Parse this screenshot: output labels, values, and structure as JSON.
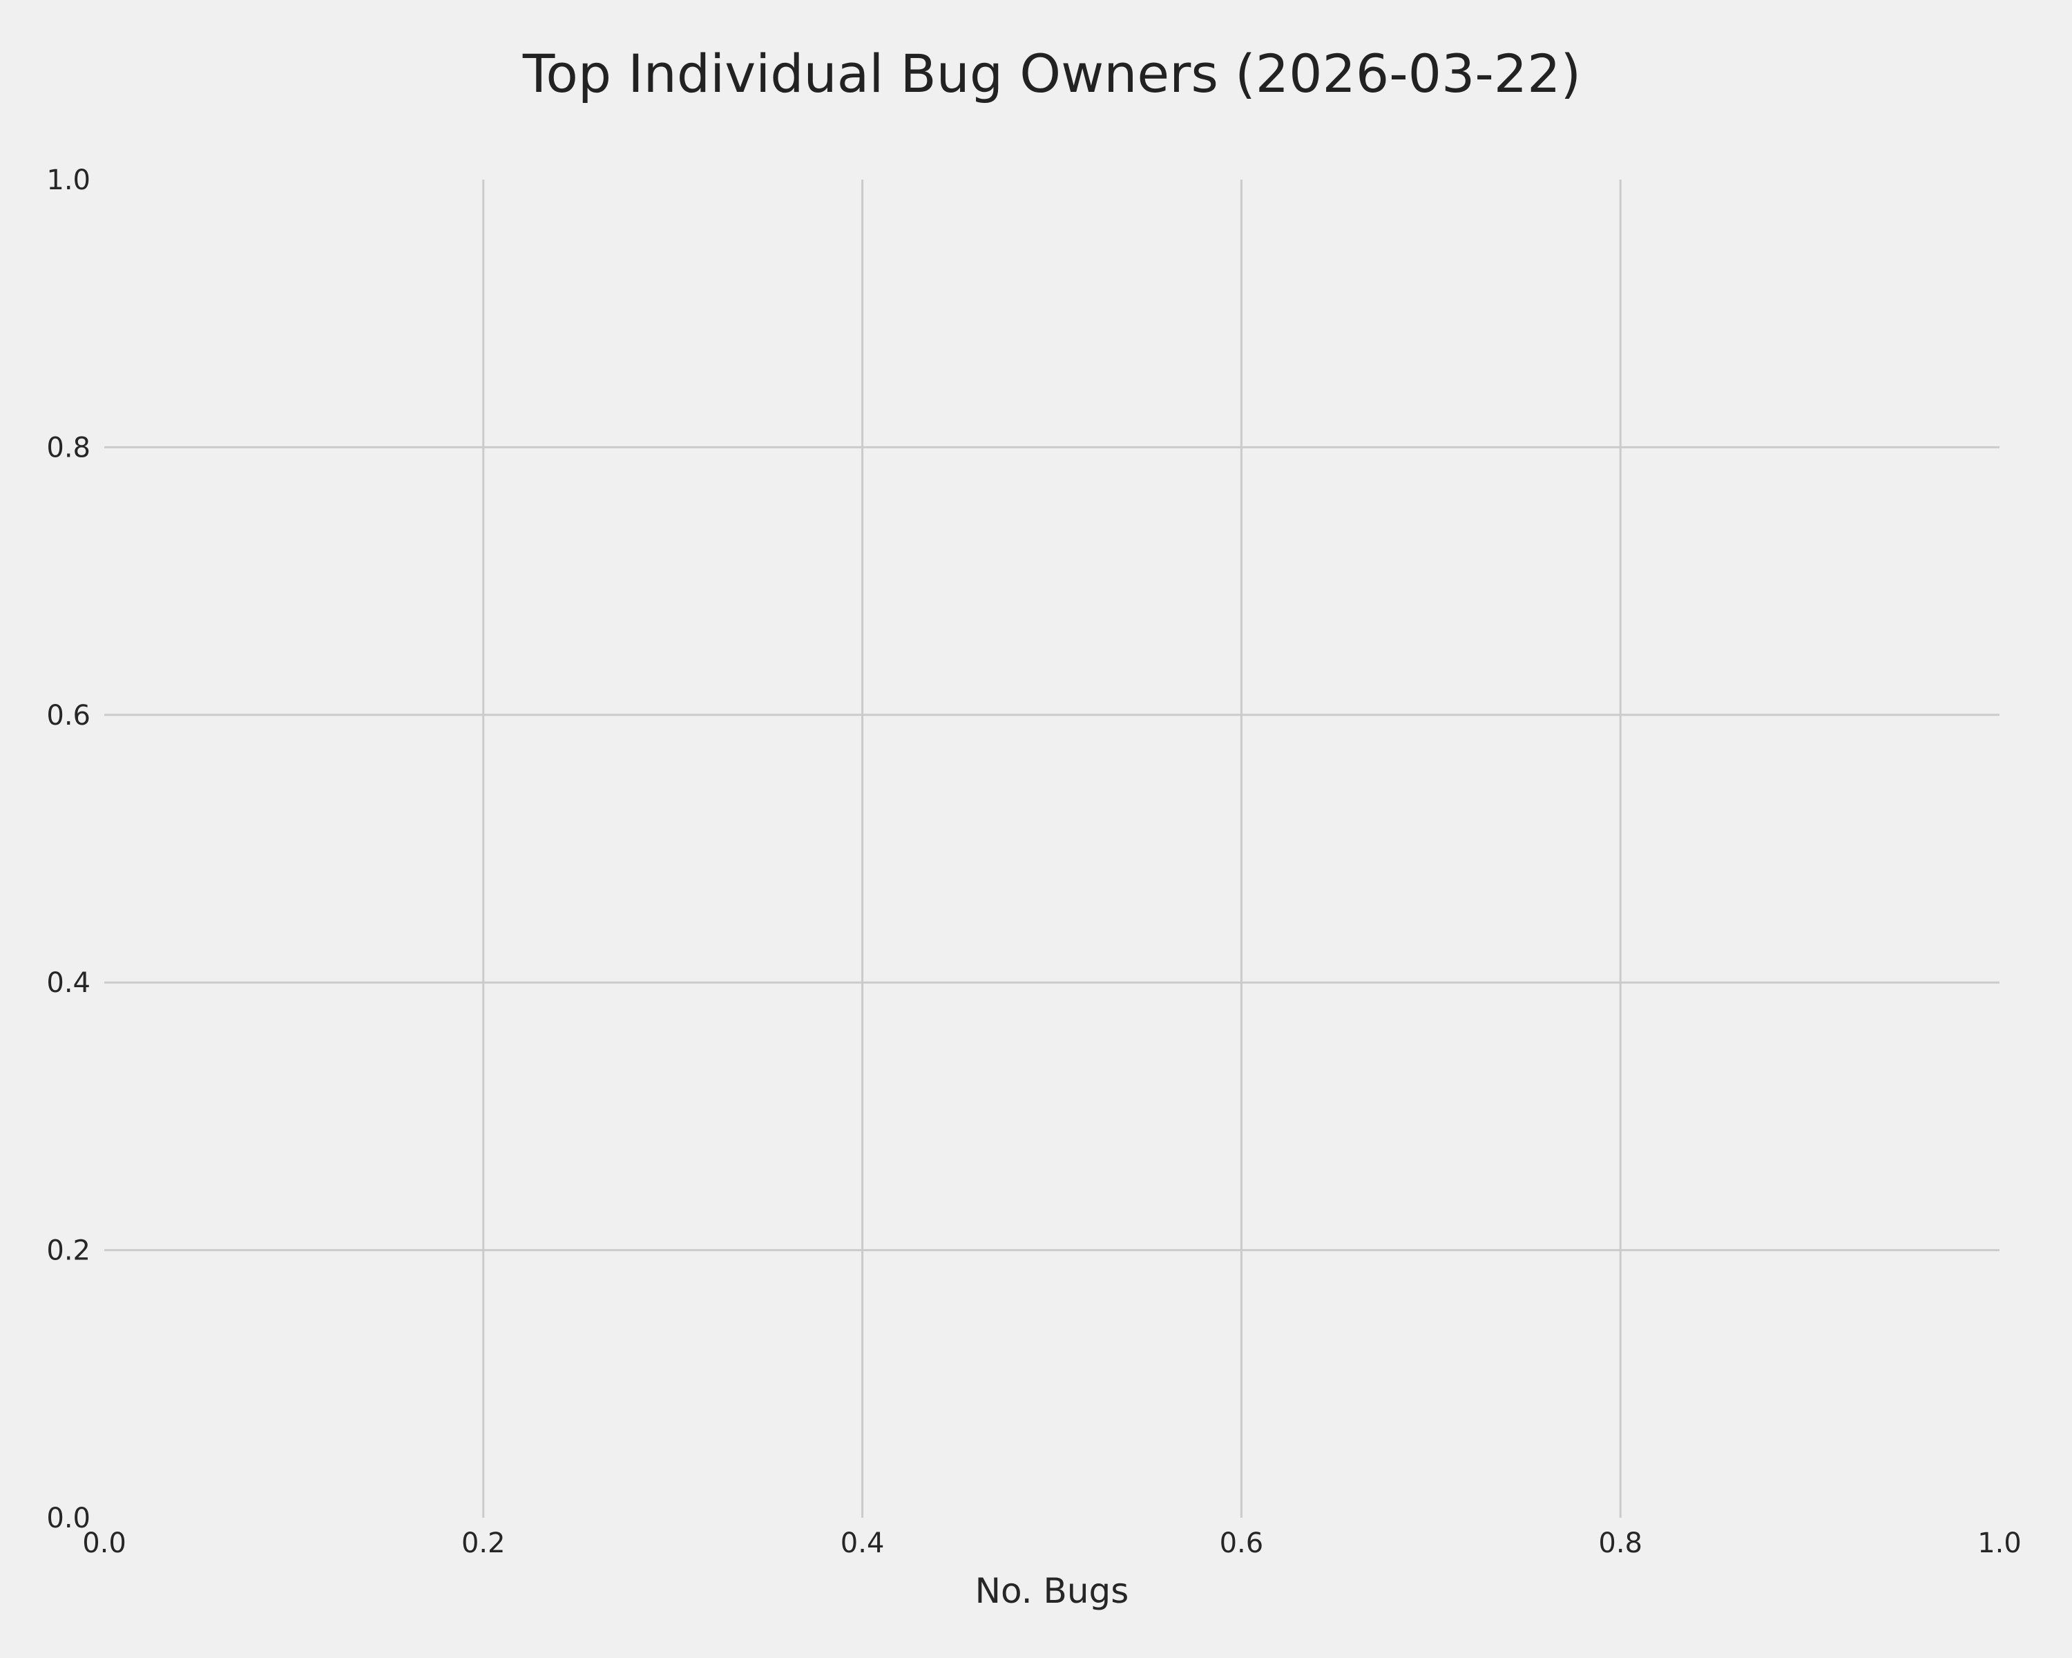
{
  "chart_data": {
    "type": "bar",
    "orientation": "horizontal",
    "title": "Top Individual Bug Owners (2026-03-22)",
    "xlabel": "No. Bugs",
    "ylabel": "",
    "categories": [],
    "values": [],
    "xlim": [
      0.0,
      1.0
    ],
    "ylim": [
      0.0,
      1.0
    ],
    "xticks": [
      "0.0",
      "0.2",
      "0.4",
      "0.6",
      "0.8",
      "1.0"
    ],
    "yticks": [
      "0.0",
      "0.2",
      "0.4",
      "0.6",
      "0.8",
      "1.0"
    ],
    "grid": true,
    "colors": {
      "background": "#f0f0f0",
      "grid": "#cbcbcb",
      "text": "#222222"
    }
  }
}
